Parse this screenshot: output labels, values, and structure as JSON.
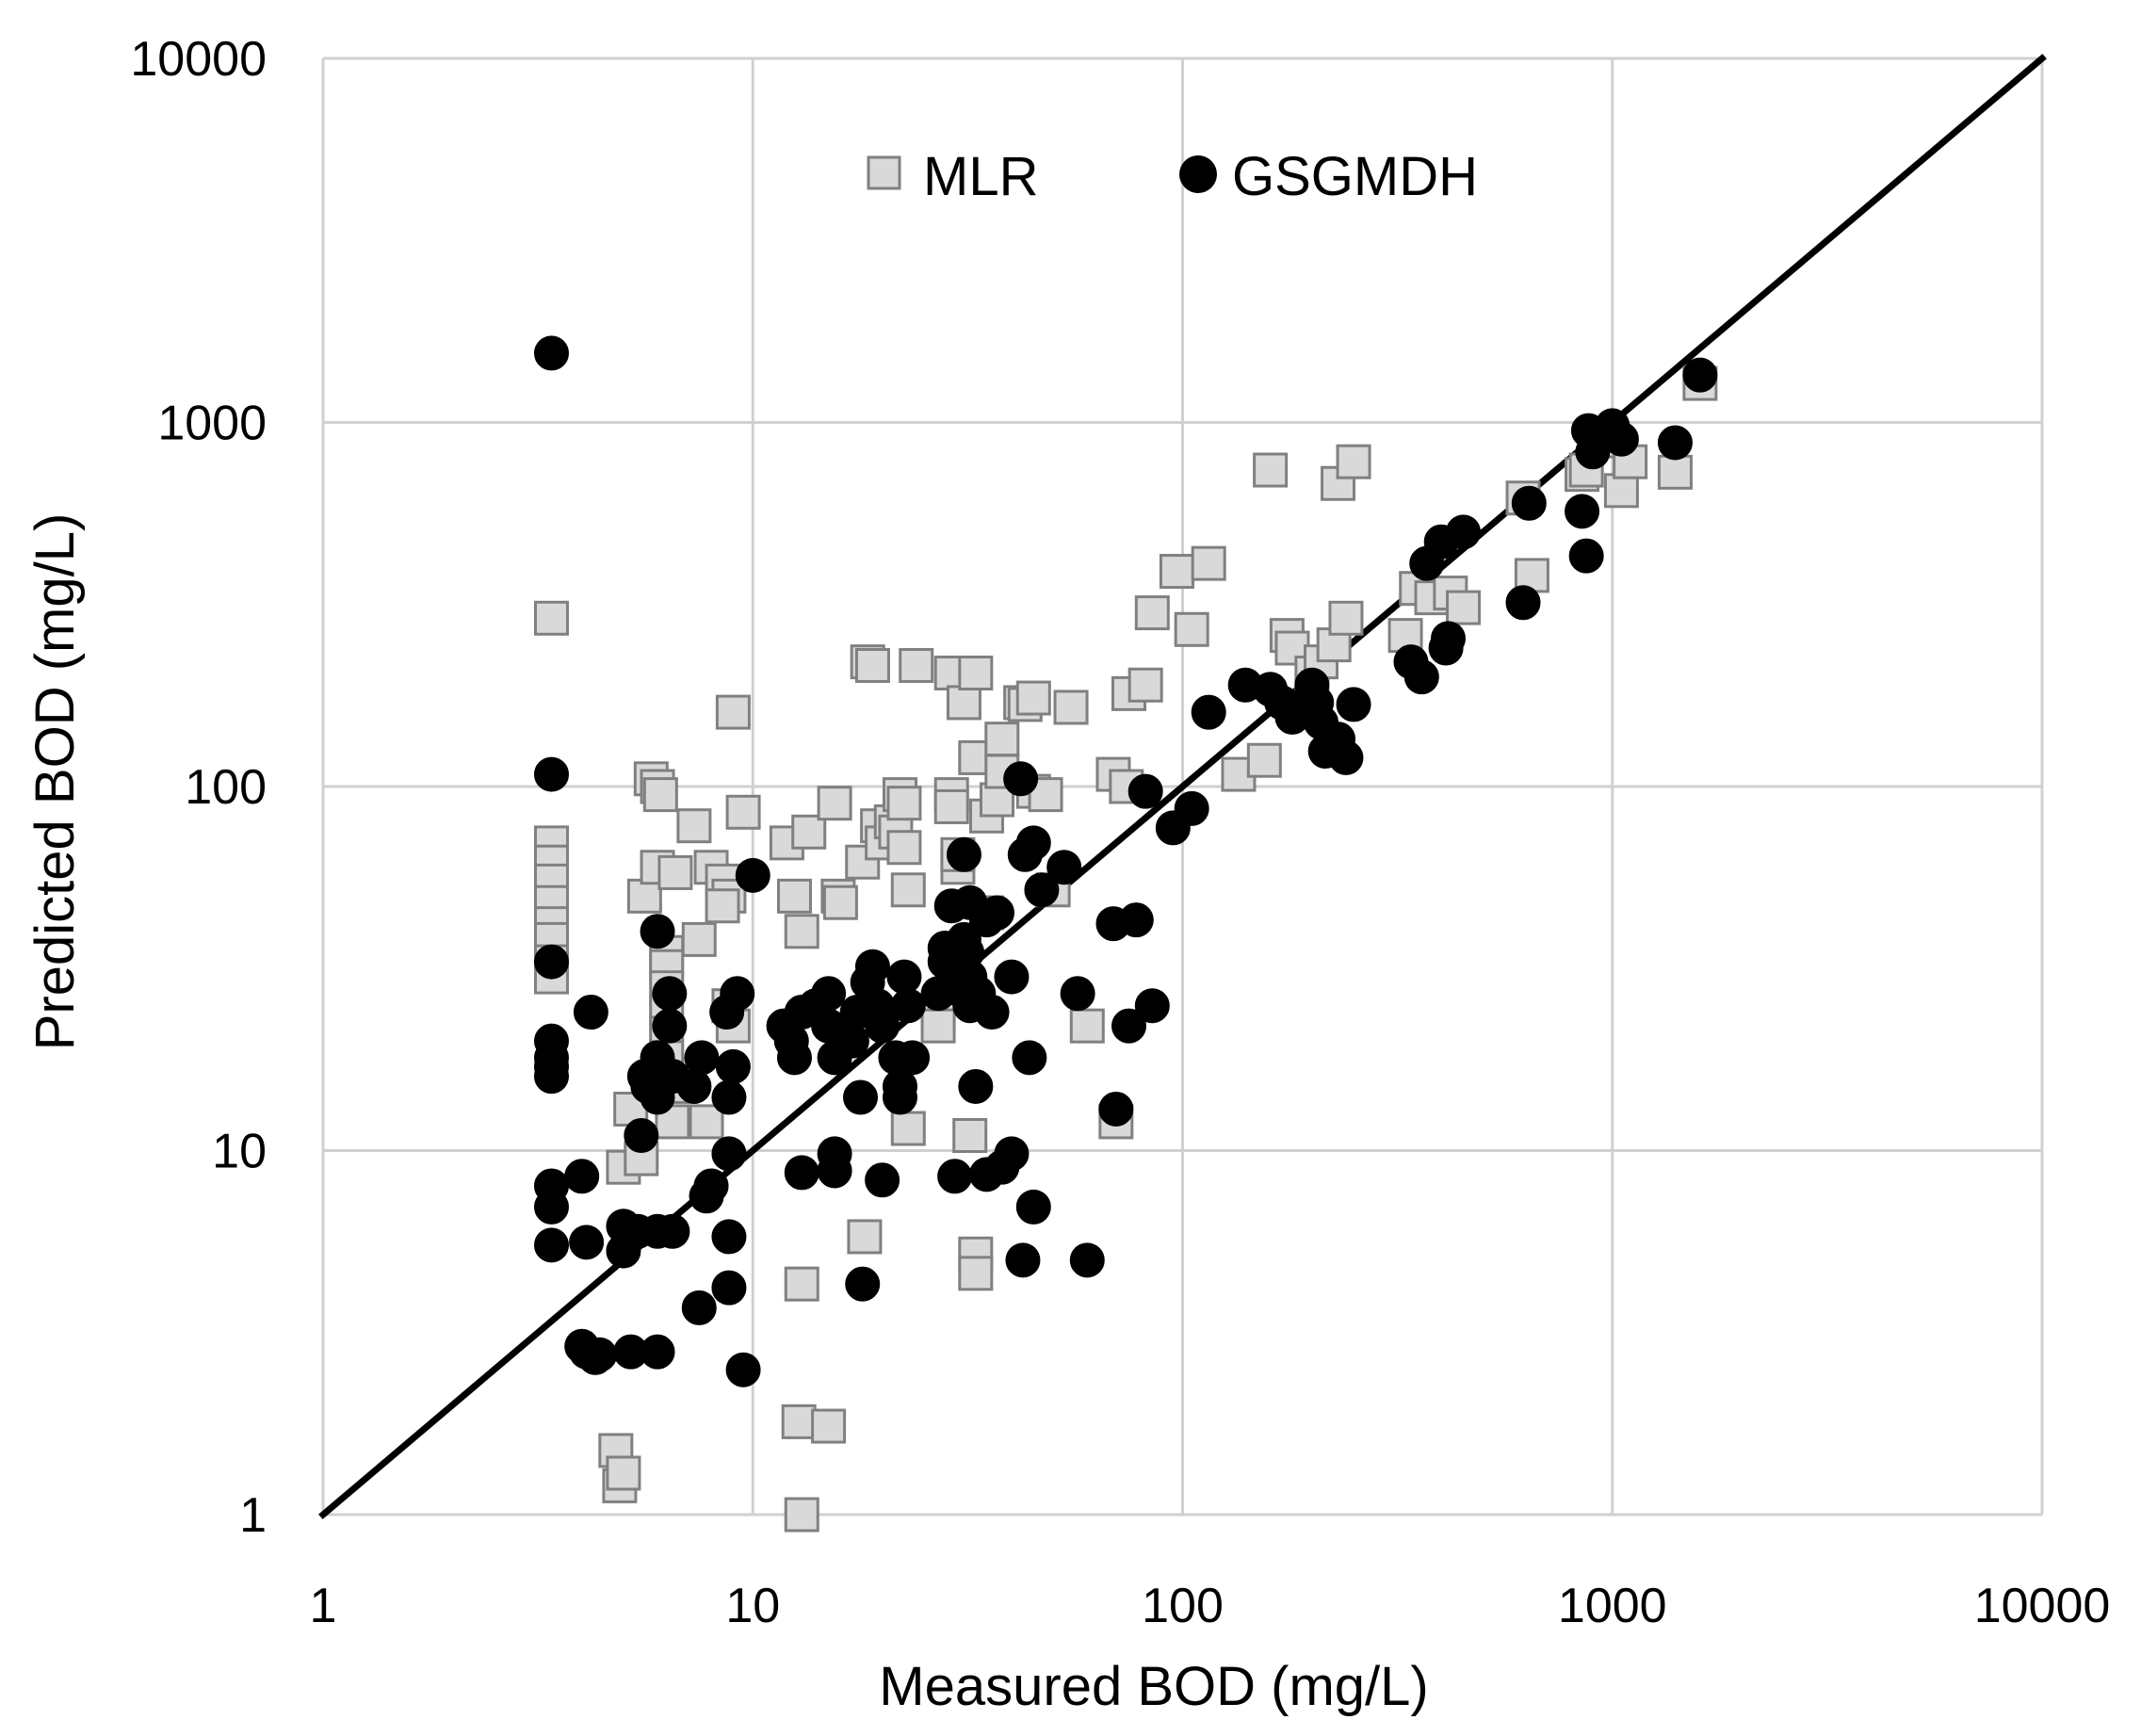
{
  "chart_data": {
    "type": "scatter",
    "title": "",
    "xlabel": "Measured BOD (mg/L)",
    "ylabel": "Predicted BOD (mg/L)",
    "xscale": "log",
    "yscale": "log",
    "xlim": [
      1,
      10000
    ],
    "ylim": [
      1,
      10000
    ],
    "grid": true,
    "legend_position": "top-center",
    "x_ticks": [
      "1",
      "10",
      "100",
      "1000",
      "10000"
    ],
    "y_ticks": [
      "1",
      "10",
      "100",
      "1000",
      "10000"
    ],
    "reference_line": {
      "type": "1:1",
      "from": [
        1,
        1
      ],
      "to": [
        10000,
        10000
      ],
      "color": "#000000"
    },
    "series": [
      {
        "name": "MLR",
        "marker": "square",
        "fill": "#d9d9d9",
        "stroke": "#808080",
        "points": [
          [
            3.4,
            290
          ],
          [
            3.4,
            70
          ],
          [
            3.4,
            62
          ],
          [
            3.4,
            55
          ],
          [
            3.4,
            48
          ],
          [
            3.4,
            42
          ],
          [
            3.4,
            38
          ],
          [
            3.4,
            33
          ],
          [
            3.4,
            30
          ],
          [
            4.8,
            1.5
          ],
          [
            4.9,
            1.2
          ],
          [
            5.0,
            1.3
          ],
          [
            5.0,
            9
          ],
          [
            5.5,
            9.5
          ],
          [
            5.2,
            13
          ],
          [
            5.6,
            50
          ],
          [
            5.8,
            105
          ],
          [
            6.0,
            100
          ],
          [
            6.1,
            95
          ],
          [
            6.0,
            60
          ],
          [
            6.6,
            58
          ],
          [
            6.3,
            35
          ],
          [
            6.3,
            32
          ],
          [
            6.3,
            28
          ],
          [
            6.3,
            24
          ],
          [
            6.3,
            21
          ],
          [
            6.3,
            18
          ],
          [
            6.5,
            12
          ],
          [
            6.8,
            15
          ],
          [
            7.5,
            38
          ],
          [
            7.3,
            78
          ],
          [
            7.8,
            12
          ],
          [
            8.0,
            60
          ],
          [
            8.5,
            55
          ],
          [
            8.8,
            50
          ],
          [
            8.5,
            47
          ],
          [
            9.0,
            160
          ],
          [
            9.5,
            85
          ],
          [
            8.8,
            25
          ],
          [
            9.0,
            22
          ],
          [
            12.0,
            70
          ],
          [
            12.5,
            50
          ],
          [
            13.0,
            40
          ],
          [
            13.5,
            75
          ],
          [
            13.0,
            4.3
          ],
          [
            12.8,
            1.8
          ],
          [
            13.0,
            1.0
          ],
          [
            15.0,
            1.75
          ],
          [
            15.5,
            90
          ],
          [
            15.8,
            50
          ],
          [
            16.0,
            48
          ],
          [
            18.0,
            62
          ],
          [
            18.2,
            5.8
          ],
          [
            18.5,
            220
          ],
          [
            19.0,
            215
          ],
          [
            19.5,
            78
          ],
          [
            20.0,
            70
          ],
          [
            21.0,
            80
          ],
          [
            21.5,
            75
          ],
          [
            22.0,
            95
          ],
          [
            22.5,
            90
          ],
          [
            22.5,
            68
          ],
          [
            23.0,
            52
          ],
          [
            23.0,
            11.5
          ],
          [
            24.0,
            215
          ],
          [
            27.0,
            24
          ],
          [
            27.0,
            22
          ],
          [
            29.0,
            205
          ],
          [
            29.0,
            95
          ],
          [
            29.0,
            88
          ],
          [
            30.0,
            60
          ],
          [
            30.0,
            65
          ],
          [
            31.0,
            170
          ],
          [
            32.0,
            11
          ],
          [
            33.0,
            205
          ],
          [
            33.0,
            120
          ],
          [
            33.0,
            5.2
          ],
          [
            33.0,
            4.6
          ],
          [
            35.0,
            45
          ],
          [
            35.0,
            83
          ],
          [
            37.0,
            92
          ],
          [
            38.0,
            135
          ],
          [
            38.0,
            110
          ],
          [
            42.0,
            170
          ],
          [
            43.0,
            168
          ],
          [
            45.0,
            175
          ],
          [
            45.0,
            97
          ],
          [
            48.0,
            95
          ],
          [
            50.0,
            52
          ],
          [
            55.0,
            165
          ],
          [
            60.0,
            22
          ],
          [
            69.0,
            108
          ],
          [
            70.0,
            12
          ],
          [
            74.0,
            100
          ],
          [
            75.0,
            180
          ],
          [
            82.0,
            190
          ],
          [
            85.0,
            300
          ],
          [
            97.0,
            390
          ],
          [
            105.0,
            270
          ],
          [
            115.0,
            410
          ],
          [
            135.0,
            108
          ],
          [
            155.0,
            118
          ],
          [
            160.0,
            740
          ],
          [
            175.0,
            260
          ],
          [
            180.0,
            240
          ],
          [
            200.0,
            205
          ],
          [
            210.0,
            220
          ],
          [
            225.0,
            245
          ],
          [
            230.0,
            680
          ],
          [
            240.0,
            290
          ],
          [
            250.0,
            780
          ],
          [
            330.0,
            260
          ],
          [
            350.0,
            350
          ],
          [
            380.0,
            330
          ],
          [
            420.0,
            340
          ],
          [
            450.0,
            310
          ],
          [
            620.0,
            620
          ],
          [
            650.0,
            380
          ],
          [
            850.0,
            720
          ],
          [
            870.0,
            740
          ],
          [
            950.0,
            890
          ],
          [
            1050.0,
            650
          ],
          [
            1100.0,
            780
          ],
          [
            1400.0,
            730
          ],
          [
            1600.0,
            1280
          ]
        ]
      },
      {
        "name": "GSGMDH",
        "marker": "circle",
        "fill": "#000000",
        "stroke": "#000000",
        "points": [
          [
            3.4,
            1550
          ],
          [
            3.4,
            108
          ],
          [
            3.4,
            33
          ],
          [
            3.4,
            20
          ],
          [
            3.4,
            18
          ],
          [
            3.4,
            17
          ],
          [
            3.4,
            16
          ],
          [
            3.4,
            8
          ],
          [
            3.4,
            7
          ],
          [
            3.4,
            5.5
          ],
          [
            4.0,
            2.9
          ],
          [
            4.1,
            2.8
          ],
          [
            4.0,
            8.5
          ],
          [
            4.2,
            24
          ],
          [
            4.1,
            5.6
          ],
          [
            4.3,
            2.7
          ],
          [
            4.4,
            2.75
          ],
          [
            5.0,
            6.2
          ],
          [
            5.0,
            5.3
          ],
          [
            5.2,
            2.8
          ],
          [
            5.4,
            6.0
          ],
          [
            5.5,
            11
          ],
          [
            5.6,
            16
          ],
          [
            5.7,
            15
          ],
          [
            6.0,
            40
          ],
          [
            6.0,
            18
          ],
          [
            6.0,
            14
          ],
          [
            6.0,
            6.0
          ],
          [
            6.0,
            2.8
          ],
          [
            6.4,
            22
          ],
          [
            6.4,
            27
          ],
          [
            6.5,
            16
          ],
          [
            6.5,
            6.0
          ],
          [
            7.3,
            15
          ],
          [
            7.5,
            3.7
          ],
          [
            7.6,
            18
          ],
          [
            7.8,
            7.5
          ],
          [
            8.0,
            8.0
          ],
          [
            8.7,
            24
          ],
          [
            8.8,
            14
          ],
          [
            9.0,
            17
          ],
          [
            8.8,
            9.8
          ],
          [
            8.8,
            5.8
          ],
          [
            8.8,
            4.2
          ],
          [
            9.2,
            27
          ],
          [
            9.5,
            2.5
          ],
          [
            10.0,
            57
          ],
          [
            11.8,
            22
          ],
          [
            12.3,
            20
          ],
          [
            12.5,
            18
          ],
          [
            13.0,
            8.7
          ],
          [
            13.0,
            24
          ],
          [
            14.0,
            25
          ],
          [
            15.0,
            27
          ],
          [
            15.0,
            22
          ],
          [
            15.5,
            18
          ],
          [
            15.5,
            9.8
          ],
          [
            15.5,
            8.8
          ],
          [
            17.0,
            20
          ],
          [
            17.5,
            24
          ],
          [
            17.8,
            14
          ],
          [
            18.0,
            4.3
          ],
          [
            18.5,
            29
          ],
          [
            19.0,
            32
          ],
          [
            19.5,
            25
          ],
          [
            20.0,
            22
          ],
          [
            20.0,
            8.3
          ],
          [
            21.5,
            18
          ],
          [
            22.0,
            15
          ],
          [
            22.0,
            14
          ],
          [
            22.5,
            30
          ],
          [
            23.0,
            25
          ],
          [
            23.5,
            18
          ],
          [
            27.0,
            27
          ],
          [
            28.0,
            36
          ],
          [
            28.0,
            33
          ],
          [
            29.0,
            47
          ],
          [
            29.0,
            28
          ],
          [
            29.5,
            8.5
          ],
          [
            31.0,
            65
          ],
          [
            31.0,
            38
          ],
          [
            31.5,
            35
          ],
          [
            32.0,
            48
          ],
          [
            32.0,
            30
          ],
          [
            32.0,
            25
          ],
          [
            33.0,
            15
          ],
          [
            33.5,
            27
          ],
          [
            35.0,
            43
          ],
          [
            35.0,
            8.6
          ],
          [
            36.0,
            24
          ],
          [
            37.0,
            45
          ],
          [
            38.0,
            9.0
          ],
          [
            40.0,
            30
          ],
          [
            40.0,
            9.8
          ],
          [
            42.0,
            105
          ],
          [
            42.5,
            5.0
          ],
          [
            43.0,
            65
          ],
          [
            44.0,
            18
          ],
          [
            45.0,
            70
          ],
          [
            45.0,
            7.0
          ],
          [
            47.0,
            52
          ],
          [
            53.0,
            60
          ],
          [
            57.0,
            27
          ],
          [
            60.0,
            5.0
          ],
          [
            69.0,
            42
          ],
          [
            70.0,
            13
          ],
          [
            75.0,
            22
          ],
          [
            78.0,
            43
          ],
          [
            82.0,
            97
          ],
          [
            85.0,
            25
          ],
          [
            95.0,
            77
          ],
          [
            105.0,
            87
          ],
          [
            115.0,
            160
          ],
          [
            140.0,
            190
          ],
          [
            160.0,
            185
          ],
          [
            170.0,
            170
          ],
          [
            180.0,
            155
          ],
          [
            190.0,
            165
          ],
          [
            200.0,
            190
          ],
          [
            205.0,
            170
          ],
          [
            210.0,
            150
          ],
          [
            215.0,
            125
          ],
          [
            230.0,
            135
          ],
          [
            240.0,
            120
          ],
          [
            250.0,
            168
          ],
          [
            340.0,
            220
          ],
          [
            360.0,
            200
          ],
          [
            370.0,
            410
          ],
          [
            400.0,
            470
          ],
          [
            410.0,
            240
          ],
          [
            415.0,
            255
          ],
          [
            450.0,
            500
          ],
          [
            620.0,
            320
          ],
          [
            640.0,
            600
          ],
          [
            850.0,
            570
          ],
          [
            870.0,
            430
          ],
          [
            880.0,
            950
          ],
          [
            900.0,
            830
          ],
          [
            1000.0,
            980
          ],
          [
            1050.0,
            900
          ],
          [
            1400.0,
            880
          ],
          [
            1600.0,
            1350
          ]
        ]
      }
    ]
  }
}
